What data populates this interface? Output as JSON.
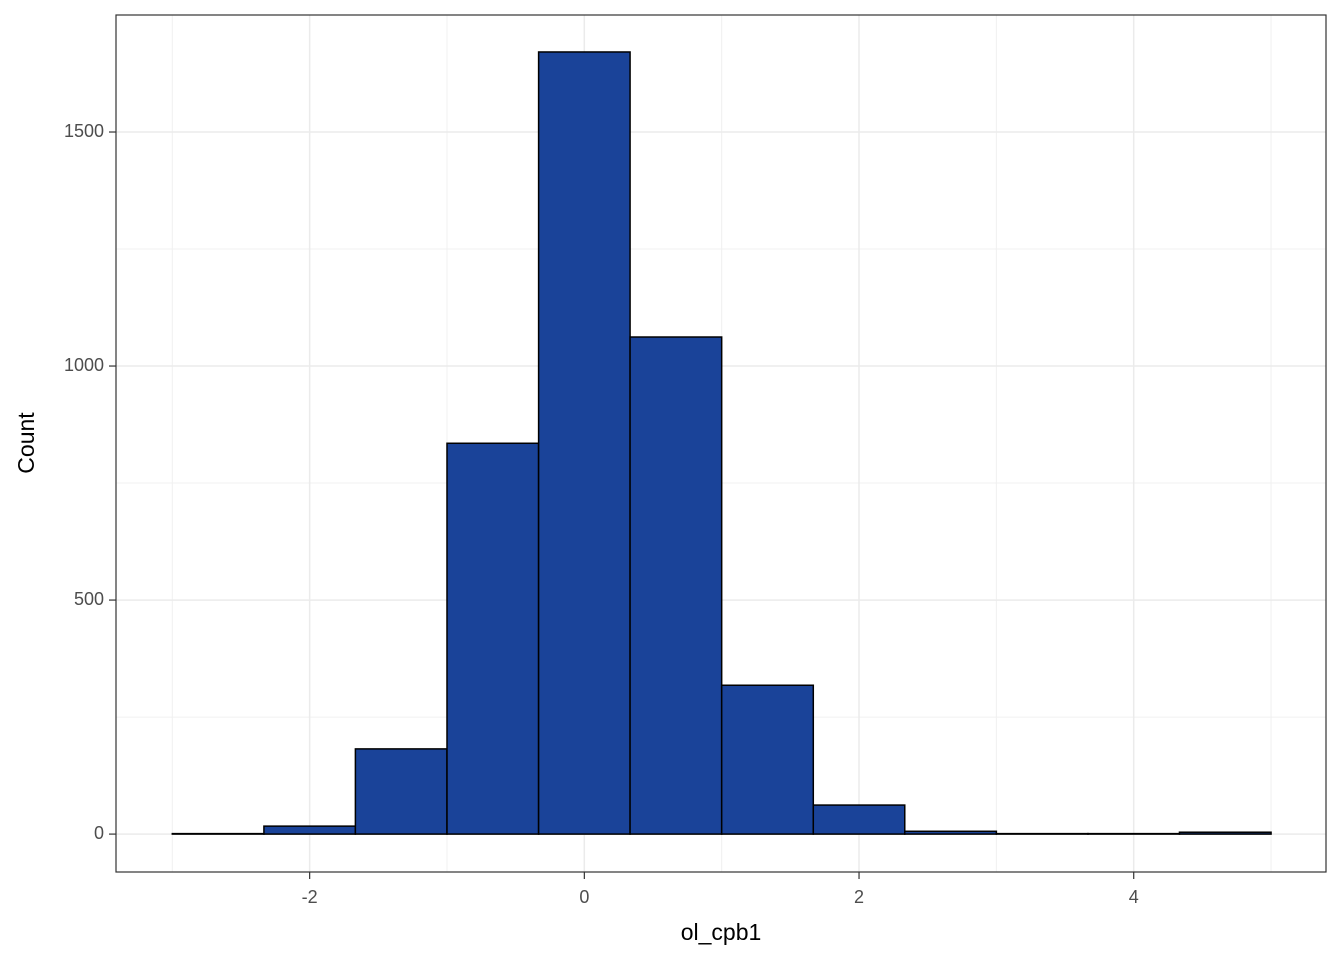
{
  "chart_data": {
    "type": "histogram",
    "x_label": "ol_cpb1",
    "y_label": "Count",
    "bins": [
      -3,
      -2.333,
      -1.667,
      -1,
      -0.333,
      0.333,
      1,
      1.667,
      2.333,
      3,
      3.667,
      4.333,
      5
    ],
    "values": [
      1,
      17,
      182,
      835,
      1671,
      1062,
      318,
      62,
      6,
      1,
      1,
      4
    ],
    "color": "#1a4399",
    "edge_color": "#000000",
    "xlim": [
      -3.41,
      5.4
    ],
    "ylim": [
      -81,
      1750
    ],
    "xticks": [
      -2,
      0,
      2,
      4
    ],
    "yticks": [
      0,
      500,
      1000,
      1500
    ],
    "grid": true,
    "minor_grid": true
  }
}
